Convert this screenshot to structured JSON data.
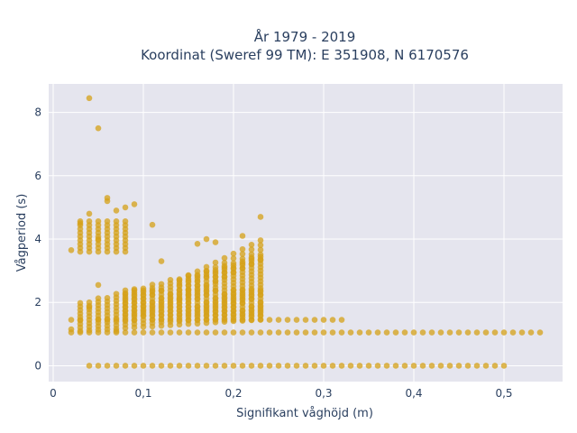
{
  "chart_data": {
    "type": "scatter",
    "title": "År 1979 - 2019",
    "subtitle": "Koordinat (Sweref 99 TM): E 351908, N 6170576",
    "xlabel": "Signifikant våghöjd (m)",
    "ylabel": "Vågperiod (s)",
    "xlim": [
      -0.005,
      0.565
    ],
    "ylim": [
      -0.5,
      8.9
    ],
    "x_ticks": [
      0,
      0.1,
      0.2,
      0.3,
      0.4,
      0.5
    ],
    "x_tick_labels": [
      "0",
      "0,1",
      "0,2",
      "0,3",
      "0,4",
      "0,5"
    ],
    "y_ticks": [
      0,
      2,
      4,
      6,
      8
    ],
    "y_tick_labels": [
      "0",
      "2",
      "4",
      "6",
      "8"
    ],
    "grid": true,
    "marker_color": "#d4a017",
    "background": "#e5e5ee",
    "series": [
      {
        "x": [
          0.04,
          0.05,
          0.02,
          0.03,
          0.04,
          0.04,
          0.05,
          0.06,
          0.06,
          0.07,
          0.08,
          0.09,
          0.11,
          0.16,
          0.17,
          0.18,
          0.21,
          0.23,
          0.02,
          0.04,
          0.05,
          0.07,
          0.1,
          0.12
        ],
        "y": [
          8.45,
          7.5,
          3.65,
          4.5,
          4.8,
          4.2,
          4.0,
          5.3,
          5.2,
          4.9,
          5.0,
          5.1,
          4.45,
          3.85,
          4.0,
          3.9,
          4.1,
          4.7,
          1.15,
          1.85,
          2.55,
          1.1,
          1.05,
          3.3
        ]
      }
    ]
  }
}
